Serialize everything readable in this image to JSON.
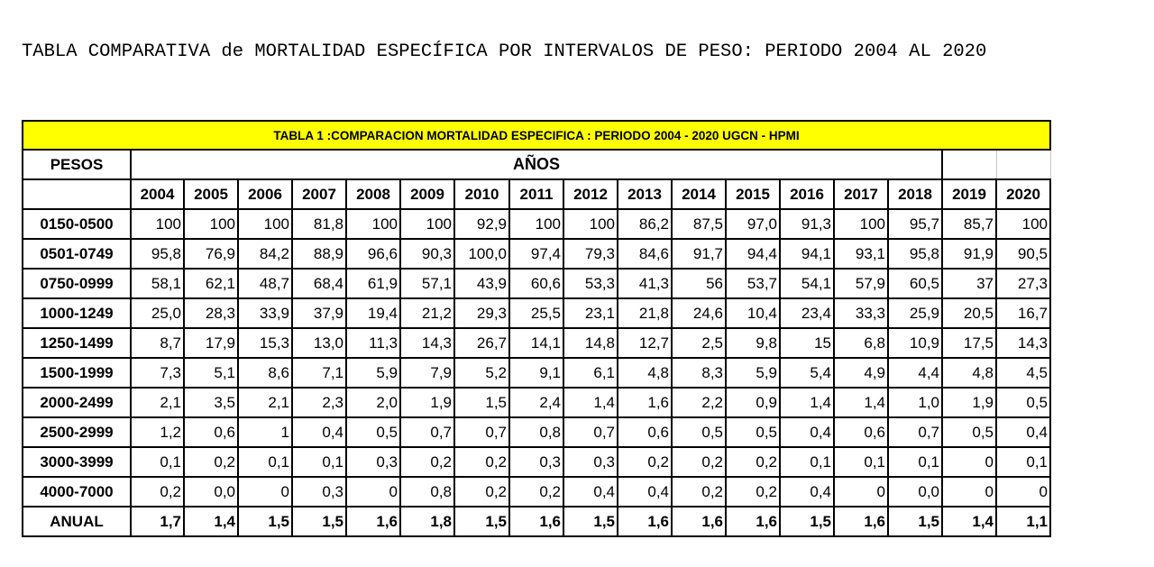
{
  "document": {
    "heading": "TABLA COMPARATIVA de MORTALIDAD ESPECÍFICA POR INTERVALOS DE PESO: PERIODO 2004 AL 2020"
  },
  "table": {
    "title": "TABLA 1 :COMPARACION MORTALIDAD ESPECIFICA : PERIODO 2004 - 2020 UGCN - HPMI",
    "weights_header": "PESOS",
    "years_header": "AÑOS",
    "years": [
      "2004",
      "2005",
      "2006",
      "2007",
      "2008",
      "2009",
      "2010",
      "2011",
      "2012",
      "2013",
      "2014",
      "2015",
      "2016",
      "2017",
      "2018",
      "2019",
      "2020"
    ],
    "rows": [
      {
        "label": "0150-0500",
        "values": [
          "100",
          "100",
          "100",
          "81,8",
          "100",
          "100",
          "92,9",
          "100",
          "100",
          "86,2",
          "87,5",
          "97,0",
          "91,3",
          "100",
          "95,7",
          "85,7",
          "100"
        ]
      },
      {
        "label": "0501-0749",
        "values": [
          "95,8",
          "76,9",
          "84,2",
          "88,9",
          "96,6",
          "90,3",
          "100,0",
          "97,4",
          "79,3",
          "84,6",
          "91,7",
          "94,4",
          "94,1",
          "93,1",
          "95,8",
          "91,9",
          "90,5"
        ]
      },
      {
        "label": "0750-0999",
        "values": [
          "58,1",
          "62,1",
          "48,7",
          "68,4",
          "61,9",
          "57,1",
          "43,9",
          "60,6",
          "53,3",
          "41,3",
          "56",
          "53,7",
          "54,1",
          "57,9",
          "60,5",
          "37",
          "27,3"
        ]
      },
      {
        "label": "1000-1249",
        "values": [
          "25,0",
          "28,3",
          "33,9",
          "37,9",
          "19,4",
          "21,2",
          "29,3",
          "25,5",
          "23,1",
          "21,8",
          "24,6",
          "10,4",
          "23,4",
          "33,3",
          "25,9",
          "20,5",
          "16,7"
        ]
      },
      {
        "label": "1250-1499",
        "values": [
          "8,7",
          "17,9",
          "15,3",
          "13,0",
          "11,3",
          "14,3",
          "26,7",
          "14,1",
          "14,8",
          "12,7",
          "2,5",
          "9,8",
          "15",
          "6,8",
          "10,9",
          "17,5",
          "14,3"
        ]
      },
      {
        "label": "1500-1999",
        "values": [
          "7,3",
          "5,1",
          "8,6",
          "7,1",
          "5,9",
          "7,9",
          "5,2",
          "9,1",
          "6,1",
          "4,8",
          "8,3",
          "5,9",
          "5,4",
          "4,9",
          "4,4",
          "4,8",
          "4,5"
        ]
      },
      {
        "label": "2000-2499",
        "values": [
          "2,1",
          "3,5",
          "2,1",
          "2,3",
          "2,0",
          "1,9",
          "1,5",
          "2,4",
          "1,4",
          "1,6",
          "2,2",
          "0,9",
          "1,4",
          "1,4",
          "1,0",
          "1,9",
          "0,5"
        ]
      },
      {
        "label": "2500-2999",
        "values": [
          "1,2",
          "0,6",
          "1",
          "0,4",
          "0,5",
          "0,7",
          "0,7",
          "0,8",
          "0,7",
          "0,6",
          "0,5",
          "0,5",
          "0,4",
          "0,6",
          "0,7",
          "0,5",
          "0,4"
        ]
      },
      {
        "label": "3000-3999",
        "values": [
          "0,1",
          "0,2",
          "0,1",
          "0,1",
          "0,3",
          "0,2",
          "0,2",
          "0,3",
          "0,3",
          "0,2",
          "0,2",
          "0,2",
          "0,1",
          "0,1",
          "0,1",
          "0",
          "0,1"
        ]
      },
      {
        "label": "4000-7000",
        "values": [
          "0,2",
          "0,0",
          "0",
          "0,3",
          "0",
          "0,8",
          "0,2",
          "0,2",
          "0,4",
          "0,4",
          "0,2",
          "0,2",
          "0,4",
          "0",
          "0,0",
          "0",
          "0"
        ]
      }
    ],
    "annual": {
      "label": "ANUAL",
      "values": [
        "1,7",
        "1,4",
        "1,5",
        "1,5",
        "1,6",
        "1,8",
        "1,5",
        "1,6",
        "1,5",
        "1,6",
        "1,6",
        "1,6",
        "1,5",
        "1,6",
        "1,5",
        "1,4",
        "1,1"
      ]
    }
  },
  "colors": {
    "title_band": "#ffff00",
    "border": "#000000"
  }
}
